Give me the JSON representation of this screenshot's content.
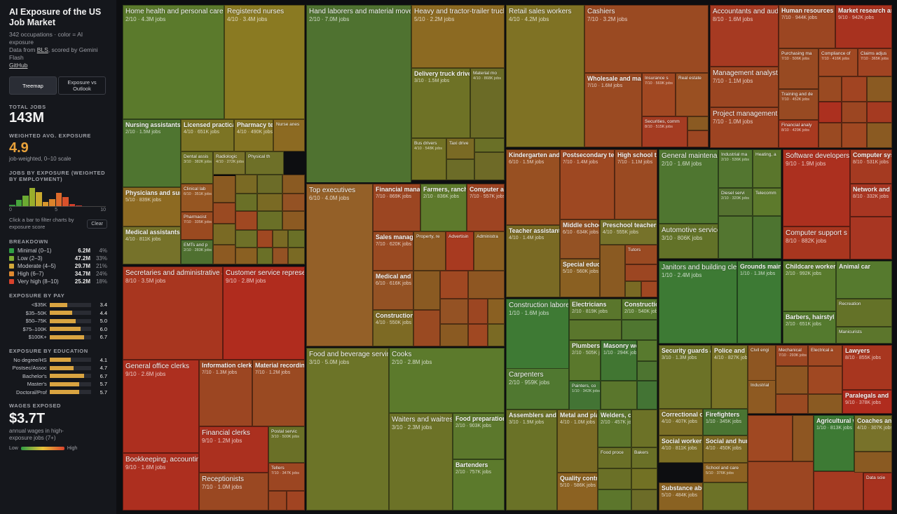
{
  "sidebar": {
    "title": "AI Exposure of the US Job Market",
    "sub1": "342 occupations · color = AI exposure",
    "sub2_prefix": "Data from ",
    "sub2_link": "BLS",
    "sub2_suffix": ", scored by Gemini Flash",
    "github": "GitHub",
    "btn_treemap": "Treemap",
    "btn_exposure": "Exposure vs Outlook",
    "total_label": "TOTAL JOBS",
    "total_value": "143M",
    "wavg_label": "WEIGHTED AVG. EXPOSURE",
    "wavg_value": "4.9",
    "wavg_note": "job-weighted, 0–10 scale",
    "hist_label": "JOBS BY EXPOSURE (WEIGHTED BY EMPLOYMENT)",
    "hist_ticks": [
      "0",
      "5",
      "10"
    ],
    "hist_bars": [
      {
        "v": 2,
        "c": "#3a9a40"
      },
      {
        "v": 9,
        "c": "#46a43c"
      },
      {
        "v": 15,
        "c": "#6cab32"
      },
      {
        "v": 26,
        "c": "#9aae2c"
      },
      {
        "v": 20,
        "c": "#c9aa2e"
      },
      {
        "v": 6,
        "c": "#d9982d"
      },
      {
        "v": 10,
        "c": "#dc832b"
      },
      {
        "v": 19,
        "c": "#dd6a2b"
      },
      {
        "v": 13,
        "c": "#d9512b"
      },
      {
        "v": 3,
        "c": "#d43f2a"
      },
      {
        "v": 1,
        "c": "#c9352a"
      }
    ],
    "filter_hint": "Click a bar to filter charts by exposure score",
    "clear": "Clear",
    "breakdown_label": "BREAKDOWN",
    "breakdown": [
      {
        "label": "Minimal (0–1)",
        "value": "6.2M",
        "pct": "4%",
        "color": "#2f9e44"
      },
      {
        "label": "Low (2–3)",
        "value": "47.2M",
        "pct": "33%",
        "color": "#7fae34"
      },
      {
        "label": "Moderate (4–5)",
        "value": "29.7M",
        "pct": "21%",
        "color": "#d4a93a"
      },
      {
        "label": "High (6–7)",
        "value": "34.7M",
        "pct": "24%",
        "color": "#e08a30"
      },
      {
        "label": "Very high (8–10)",
        "value": "25.2M",
        "pct": "18%",
        "color": "#d9422c"
      }
    ],
    "pay_label": "EXPOSURE BY PAY",
    "pay": [
      {
        "label": "<$35K",
        "value": "3.4",
        "frac": 0.34
      },
      {
        "label": "$35–50K",
        "value": "4.4",
        "frac": 0.44
      },
      {
        "label": "$50–75K",
        "value": "5.0",
        "frac": 0.5
      },
      {
        "label": "$75–100K",
        "value": "6.0",
        "frac": 0.6
      },
      {
        "label": "$100K+",
        "value": "6.7",
        "frac": 0.67
      }
    ],
    "edu_label": "EXPOSURE BY EDUCATION",
    "edu": [
      {
        "label": "No degree/HS",
        "value": "4.1",
        "frac": 0.41
      },
      {
        "label": "Postsec/Assoc",
        "value": "4.7",
        "frac": 0.47
      },
      {
        "label": "Bachelor's",
        "value": "6.7",
        "frac": 0.67
      },
      {
        "label": "Master's",
        "value": "5.7",
        "frac": 0.57
      },
      {
        "label": "Doctoral/Prof",
        "value": "5.7",
        "frac": 0.57
      }
    ],
    "wages_label": "WAGES EXPOSED",
    "wages_value": "$3.7T",
    "wages_note": "annual wages in high-exposure jobs (7+)",
    "legend_low": "Low",
    "legend_high": "High"
  },
  "cells": [
    [
      "Home health and personal care aides",
      "2/10 · 4.3M jobs",
      "#5b7a2c"
    ],
    [
      "Registered nurses",
      "4/10 · 3.4M jobs",
      "#8a7a22"
    ],
    [
      "Nursing assistants",
      "2/10 · 1.5M jobs",
      "#4f7530"
    ],
    [
      "Licensed practical",
      "4/10 · 651K jobs",
      "#7c7424"
    ],
    [
      "Pharmacy tech",
      "4/10 · 490K jobs",
      "#847423"
    ],
    [
      "Nurse anes",
      "",
      "#8c6a22"
    ],
    [
      "Physicians and surgeons",
      "5/10 · 839K jobs",
      "#8d6a22"
    ],
    [
      "Dental assis",
      "3/10 · 382K jobs",
      "#6f7326"
    ],
    [
      "Radiologic",
      "4/10 · 272K jobs",
      "#78722a"
    ],
    [
      "Physical th",
      "",
      "#6e7028"
    ],
    [
      "Clinical lab",
      "6/10 · 351K jobs",
      "#965622"
    ],
    [
      "Medical assistants",
      "4/10 · 811K jobs",
      "#76722a"
    ],
    [
      "Pharmacist",
      "7/10 · 335K jobs",
      "#9a4a20"
    ],
    [
      "EMTs and p",
      "2/10 · 283K jobs",
      "#4f7030"
    ],
    [
      "Hand laborers and material movers",
      "2/10 · 7.0M jobs",
      "#4f7230"
    ],
    [
      "Heavy and tractor-trailer truck drivers",
      "5/10 · 2.2M jobs",
      "#8c6a22"
    ],
    [
      "Delivery truck drivers",
      "3/10 · 1.5M jobs",
      "#6e7226"
    ],
    [
      "Material mo",
      "4/10 · 868K jobs",
      "#6b6b26"
    ],
    [
      "Bus drivers",
      "4/10 · 548K jobs",
      "#727124"
    ],
    [
      "Taxi drive",
      "",
      "#7a6a24"
    ],
    [
      "Retail sales workers",
      "4/10 · 4.2M jobs",
      "#7f7224"
    ],
    [
      "Cashiers",
      "7/10 · 3.2M jobs",
      "#9a4a22"
    ],
    [
      "Wholesale and manufacturing",
      "7/10 · 1.6M jobs",
      "#9a4a22"
    ],
    [
      "Insurance s",
      "7/10 · 569K jobs",
      "#a14822"
    ],
    [
      "Real estate",
      "",
      "#9a5022"
    ],
    [
      "Securities, comm",
      "8/10 · 515K jobs",
      "#a53c22"
    ],
    [
      "Accountants and auditors",
      "8/10 · 1.6M jobs",
      "#a63a22"
    ],
    [
      "Human resources s",
      "7/10 · 944K jobs",
      "#9c4622"
    ],
    [
      "Market research an",
      "9/10 · 942K jobs",
      "#a8321f"
    ],
    [
      "Purchasing ma",
      "7/10 · 506K jobs",
      "#984a22"
    ],
    [
      "Compliance of",
      "7/10 · 416K jobs",
      "#a04822"
    ],
    [
      "Claims adjus",
      "7/10 · 365K jobs",
      "#a14422"
    ],
    [
      "Management analysts",
      "7/10 · 1.1M jobs",
      "#9c4622"
    ],
    [
      "Training and de",
      "7/10 · 452K jobs",
      "#984a22"
    ],
    [
      "Project management",
      "7/10 · 1.0M jobs",
      "#9e4422"
    ],
    [
      "Financial analy",
      "8/10 · 429K jobs",
      "#a83a20"
    ],
    [
      "Secretaries and administrative assistants",
      "8/10 · 3.5M jobs",
      "#a8361f"
    ],
    [
      "Customer service representatives",
      "9/10 · 2.8M jobs",
      "#b02c1e"
    ],
    [
      "General office clerks",
      "9/10 · 2.6M jobs",
      "#ad2f1f"
    ],
    [
      "Information clerks",
      "7/10 · 1.3M jobs",
      "#9c4622"
    ],
    [
      "Material recording",
      "7/10 · 1.2M jobs",
      "#9a4a22"
    ],
    [
      "Financial clerks",
      "9/10 · 1.2M jobs",
      "#ab301f"
    ],
    [
      "Postal servic",
      "3/10 · 500K jobs",
      "#6a7027"
    ],
    [
      "Bookkeeping, accounting",
      "9/10 · 1.6M jobs",
      "#ad2f1f"
    ],
    [
      "Receptionists",
      "7/10 · 1.0M jobs",
      "#9a4822"
    ],
    [
      "Tellers",
      "7/10 · 347K jobs",
      "#9c4622"
    ],
    [
      "Top executives",
      "6/10 · 4.0M jobs",
      "#946028"
    ],
    [
      "Financial manager",
      "7/10 · 869K jobs",
      "#9c4622"
    ],
    [
      "Farmers, rancher",
      "2/10 · 836K jobs",
      "#5e7a2c"
    ],
    [
      "Computer and",
      "7/10 · 557K jobs",
      "#9e4422"
    ],
    [
      "Sales managers",
      "7/10 · 620K jobs",
      "#9a4a22"
    ],
    [
      "Property, re",
      "",
      "#8d5a22"
    ],
    [
      "Advertisin",
      "",
      "#a83a20"
    ],
    [
      "Administra",
      "",
      "#8a6022"
    ],
    [
      "Medical and he",
      "6/10 · 616K jobs",
      "#945224"
    ],
    [
      "Construction m",
      "4/10 · 550K jobs",
      "#7d6a24"
    ],
    [
      "Food and beverage serving",
      "3/10 · 5.0M jobs",
      "#6c7428"
    ],
    [
      "Cooks",
      "2/10 · 2.8M jobs",
      "#5c7a2c"
    ],
    [
      "Waiters and waitresses",
      "3/10 · 2.3M jobs",
      "#6c7227"
    ],
    [
      "Food preparation w",
      "2/10 · 903K jobs",
      "#5c782c"
    ],
    [
      "Bartenders",
      "2/10 · 757K jobs",
      "#5c7a2c"
    ],
    [
      "Kindergarten and e",
      "6/10 · 1.5M jobs",
      "#985022"
    ],
    [
      "Postsecondary tea",
      "7/10 · 1.4M jobs",
      "#9e4822"
    ],
    [
      "High school tea",
      "7/10 · 1.1M jobs",
      "#9a4a22"
    ],
    [
      "Teacher assistants",
      "4/10 · 1.4M jobs",
      "#7a6a24"
    ],
    [
      "Middle school t",
      "6/10 · 634K jobs",
      "#945224"
    ],
    [
      "Preschool teachers",
      "4/10 · 555K jobs",
      "#76722a"
    ],
    [
      "Special educati",
      "5/10 · 560K jobs",
      "#8a6022"
    ],
    [
      "Tutors",
      "",
      "#9a4a22"
    ],
    [
      "Construction laborers",
      "1/10 · 1.6M jobs",
      "#3e7a34"
    ],
    [
      "Electricians",
      "2/10 · 819K jobs",
      "#5a762c"
    ],
    [
      "Construction",
      "2/10 · 540K jobs",
      "#587a2e"
    ],
    [
      "Plumbers, p",
      "2/10 · 505K jobs",
      "#5a782c"
    ],
    [
      "Masonry wor",
      "1/10 · 294K jobs",
      "#417632"
    ],
    [
      "Carpenters",
      "2/10 · 959K jobs",
      "#507830"
    ],
    [
      "Painters, co",
      "1/10 · 342K jobs",
      "#437434"
    ],
    [
      "Assemblers and fa",
      "3/10 · 1.9M jobs",
      "#6a7227"
    ],
    [
      "Metal and plasti",
      "4/10 · 1.0M jobs",
      "#7a6a24"
    ],
    [
      "Welders, cu",
      "2/10 · 457K jobs",
      "#5c762c"
    ],
    [
      "Food proce",
      "",
      "#6a7027"
    ],
    [
      "Bakers",
      "",
      "#6a7027"
    ],
    [
      "Quality control i",
      "5/10 · 586K jobs",
      "#8c6222"
    ],
    [
      "General maintenance",
      "2/10 · 1.6M jobs",
      "#4f7630"
    ],
    [
      "Industrial ma",
      "2/10 · 536K jobs",
      "#537630"
    ],
    [
      "Heating, a",
      "",
      "#5a762c"
    ],
    [
      "Diesel servi",
      "2/10 · 320K jobs",
      "#557230"
    ],
    [
      "Telecomm",
      "",
      "#5d7a2c"
    ],
    [
      "Automotive service",
      "3/10 · 806K jobs",
      "#627228"
    ],
    [
      "Janitors and building cleaners",
      "1/10 · 2.4M jobs",
      "#3d7a34"
    ],
    [
      "Grounds mainter",
      "1/10 · 1.3M jobs",
      "#3d7a34"
    ],
    [
      "Software developers",
      "9/10 · 1.9M jobs",
      "#ac301f"
    ],
    [
      "Computer syste",
      "8/10 · 531K jobs",
      "#a53a21"
    ],
    [
      "Network and co",
      "8/10 · 332K jobs",
      "#a83622"
    ],
    [
      "Computer support s",
      "8/10 · 882K jobs",
      "#a8361f"
    ],
    [
      "Childcare workers",
      "2/10 · 992K jobs",
      "#587a2c"
    ],
    [
      "Animal car",
      "",
      "#567a2e"
    ],
    [
      "Recreation",
      "",
      "#647228"
    ],
    [
      "Barbers, hairstyl",
      "2/10 · 651K jobs",
      "#547a2e"
    ],
    [
      "Manicurists",
      "",
      "#5c762c"
    ],
    [
      "Security guards an",
      "3/10 · 1.3M jobs",
      "#6c7227"
    ],
    [
      "Police and d",
      "4/10 · 827K jobs",
      "#787226"
    ],
    [
      "Correctional offi",
      "4/10 · 407K jobs",
      "#7a6e26"
    ],
    [
      "Firefighters",
      "1/10 · 345K jobs",
      "#4a7432"
    ],
    [
      "Civil engi",
      "",
      "#8e5622"
    ],
    [
      "Mechanical",
      "7/10 · 293K jobs",
      "#9c4622"
    ],
    [
      "Electrical a",
      "",
      "#a04822"
    ],
    [
      "Industrial",
      "",
      "#8e5a22"
    ],
    [
      "Lawyers",
      "8/10 · 855K jobs",
      "#a8361f"
    ],
    [
      "Paralegals and",
      "9/10 · 378K jobs",
      "#b02c1e"
    ],
    [
      "Social workers",
      "4/10 · 811K jobs",
      "#7c6e24"
    ],
    [
      "Social and huma",
      "4/10 · 450K jobs",
      "#7e6a24"
    ],
    [
      "School and care",
      "5/10 · 376K jobs",
      "#8c6222"
    ],
    [
      "Substance abuse",
      "5/10 · 484K jobs",
      "#8a6222"
    ],
    [
      "Agricultural wo",
      "1/10 · 813K jobs",
      "#3d7a34"
    ],
    [
      "Coaches and",
      "4/10 · 307K jobs",
      "#78722a"
    ],
    [
      "Data scie",
      "",
      "#a8321f"
    ]
  ]
}
